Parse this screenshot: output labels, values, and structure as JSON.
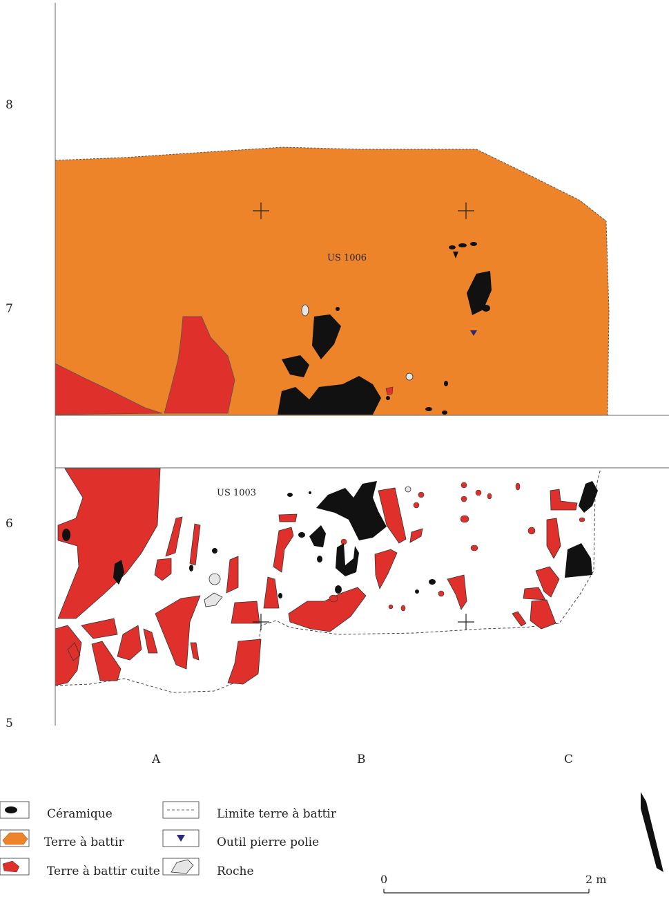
{
  "map": {
    "units": [
      {
        "id": "us1006",
        "label": "US 1006"
      },
      {
        "id": "us1003",
        "label": "US 1003"
      }
    ],
    "grid_rows": [
      "8",
      "7",
      "6",
      "5"
    ],
    "grid_cols": [
      "A",
      "B",
      "C"
    ],
    "scale": {
      "start": "0",
      "end": "2 m"
    }
  },
  "legend": {
    "ceramique": "Céramique",
    "terre": "Terre à battir",
    "terre_cuite": "Terre à battir cuite",
    "limite": "Limite terre à battir",
    "outil": "Outil pierre polie",
    "roche": "Roche"
  },
  "colors": {
    "terre": "#ee8429",
    "terre_cuite": "#e0302b",
    "ceramique": "#111111",
    "roche": "#e6e6e6",
    "outil": "#2a2a7a"
  }
}
